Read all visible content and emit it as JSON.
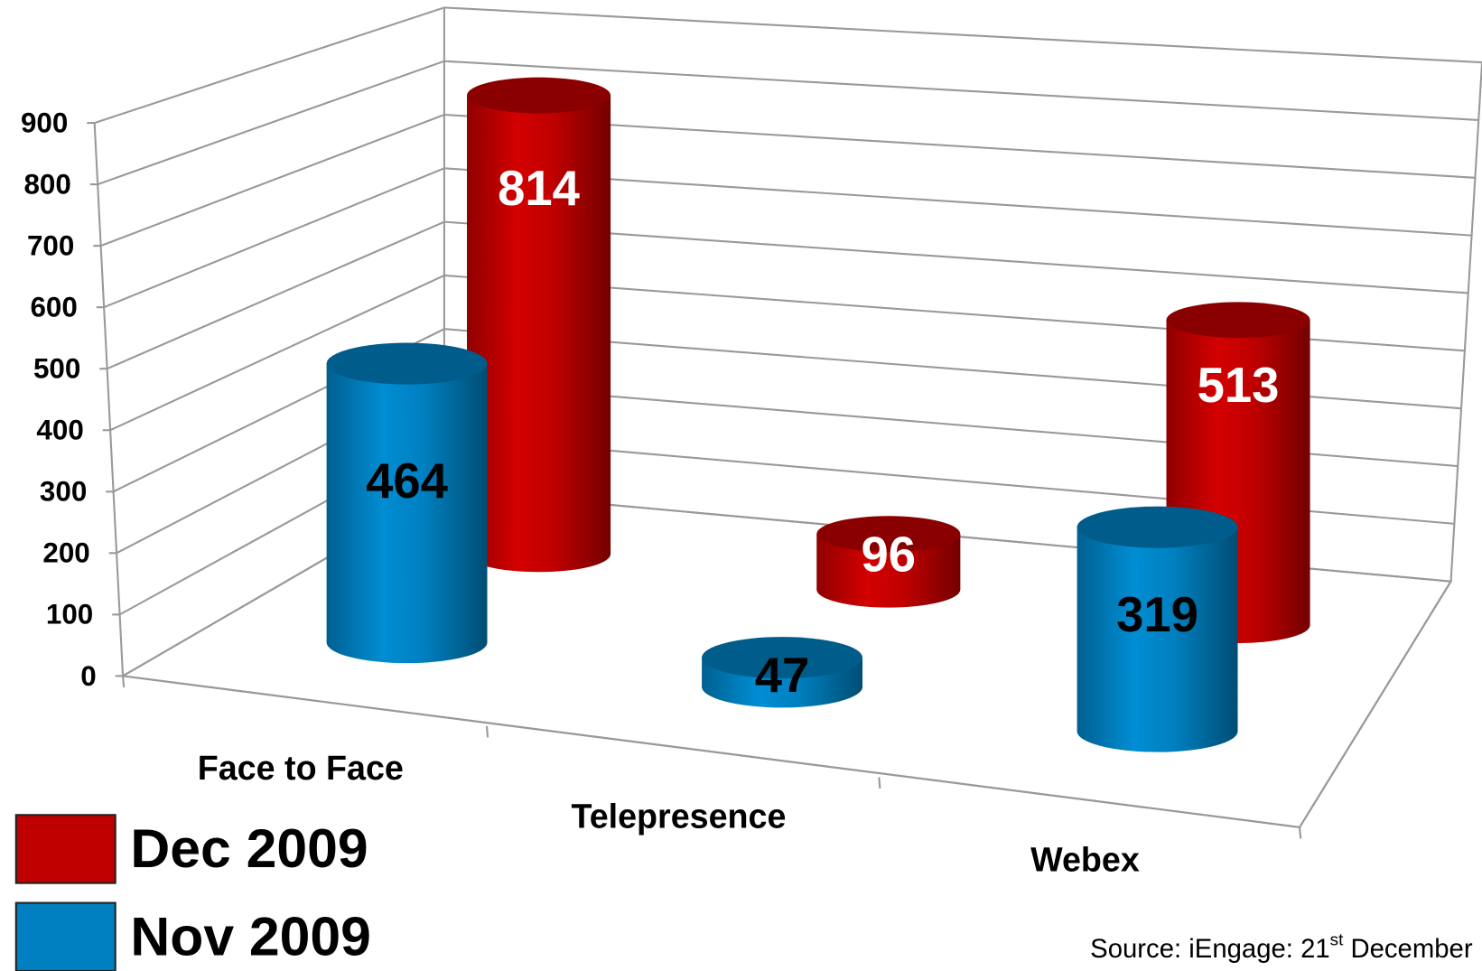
{
  "chart_data": {
    "type": "bar3d-cylinder",
    "categories": [
      "Face to Face",
      "Telepresence",
      "Webex"
    ],
    "series": [
      {
        "name": "Dec 2009",
        "color": "#c00000",
        "values": [
          814,
          96,
          513
        ]
      },
      {
        "name": "Nov 2009",
        "color": "#0080c0",
        "values": [
          464,
          47,
          319
        ]
      }
    ],
    "ylim": [
      0,
      900
    ],
    "yticks": [
      0,
      100,
      200,
      300,
      400,
      500,
      600,
      700,
      800,
      900
    ],
    "grid": true,
    "legend": "bottom-left",
    "source": {
      "prefix": "Source: iEngage: 21",
      "sup": "st",
      "suffix": " December"
    }
  }
}
